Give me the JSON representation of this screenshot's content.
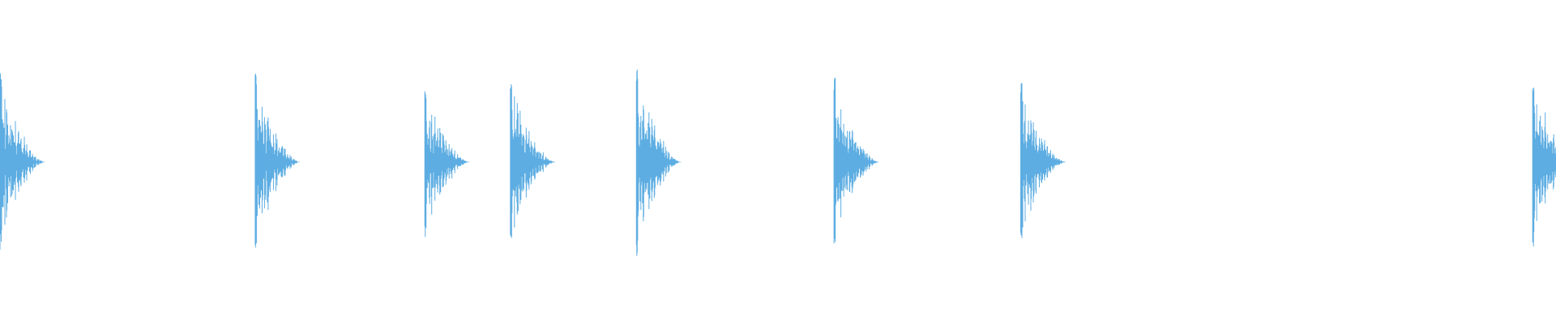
{
  "chart_data": {
    "type": "line",
    "kind": "audio-waveform",
    "title": "",
    "xlabel": "",
    "ylabel": "",
    "axes_visible": false,
    "grid": false,
    "ylim": [
      -1,
      1
    ],
    "x_range": [
      0,
      1
    ],
    "color": "#5DADE2",
    "background": "#FFFFFF",
    "bursts": [
      {
        "onset": 0.0,
        "peak": 0.56
      },
      {
        "onset": 0.164,
        "peak": 0.56
      },
      {
        "onset": 0.273,
        "peak": 0.49
      },
      {
        "onset": 0.328,
        "peak": 0.5
      },
      {
        "onset": 0.409,
        "peak": 0.62
      },
      {
        "onset": 0.536,
        "peak": 0.55
      },
      {
        "onset": 0.656,
        "peak": 0.52
      },
      {
        "onset": 0.985,
        "peak": 0.55
      }
    ]
  }
}
